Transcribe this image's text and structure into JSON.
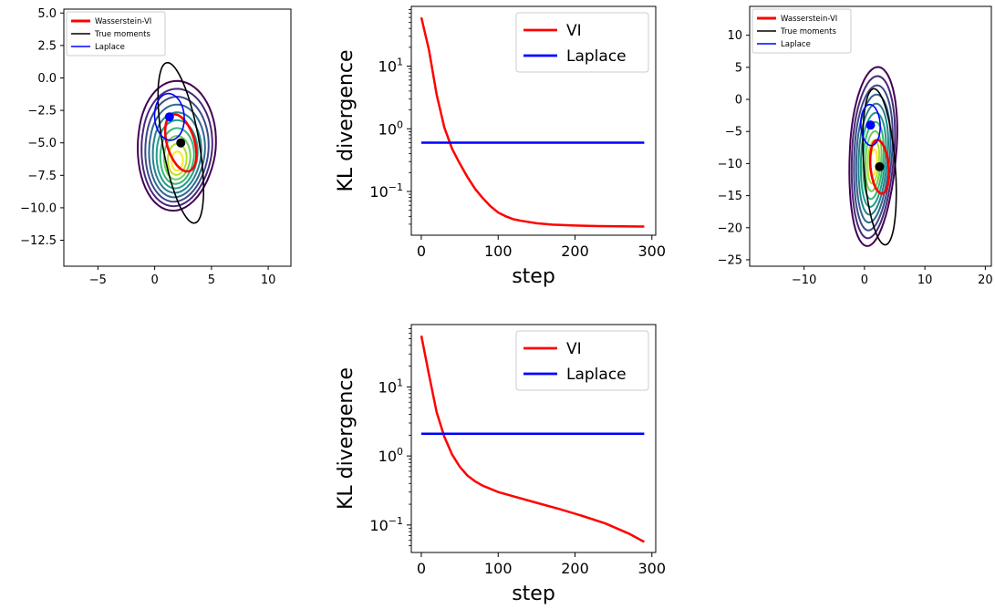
{
  "chart_data": [
    {
      "type": "contour",
      "xlim": [
        -8,
        12
      ],
      "ylim": [
        -14.5,
        5.3
      ],
      "xticks": [
        -5,
        0,
        5,
        10
      ],
      "yticks": [
        5.0,
        2.5,
        0.0,
        -2.5,
        -5.0,
        -7.5,
        -10.0,
        -12.5
      ],
      "legend": [
        "Wasserstein-VI",
        "True moments",
        "Laplace"
      ],
      "legend_placement": "top-left",
      "points": [
        {
          "x": 1.3,
          "y": -3.0,
          "color": "#0000ff"
        },
        {
          "x": 2.3,
          "y": -5.0,
          "color": "#000000"
        }
      ]
    },
    {
      "type": "line",
      "xlabel": "step",
      "ylabel": "KL divergence",
      "yscale": "log",
      "xlim": [
        -13,
        305
      ],
      "ylim": [
        0.02,
        90
      ],
      "xticks": [
        0,
        100,
        200,
        300
      ],
      "yticks": [
        0.1,
        1,
        10
      ],
      "legend_placement": "top-right",
      "series": [
        {
          "name": "VI",
          "color": "#ff0000",
          "x": [
            0,
            10,
            20,
            30,
            40,
            50,
            60,
            70,
            80,
            90,
            100,
            110,
            120,
            130,
            150,
            170,
            200,
            230,
            260,
            290
          ],
          "y": [
            60,
            18,
            3.5,
            1.05,
            0.48,
            0.28,
            0.17,
            0.11,
            0.078,
            0.058,
            0.046,
            0.04,
            0.036,
            0.034,
            0.031,
            0.0295,
            0.0285,
            0.028,
            0.0277,
            0.0275
          ]
        },
        {
          "name": "Laplace",
          "color": "#0000ff",
          "x": [
            0,
            290
          ],
          "y": [
            0.6,
            0.6
          ]
        }
      ]
    },
    {
      "type": "contour",
      "xlim": [
        -19,
        21
      ],
      "ylim": [
        -26,
        14.5
      ],
      "xticks": [
        -10,
        0,
        10,
        20
      ],
      "yticks": [
        10,
        5,
        0,
        -5,
        -10,
        -15,
        -20,
        -25
      ],
      "legend": [
        "Wasserstein-VI",
        "True moments",
        "Laplace"
      ],
      "legend_placement": "top-left",
      "points": [
        {
          "x": 1.0,
          "y": -4.0,
          "color": "#0000ff"
        },
        {
          "x": 2.5,
          "y": -10.5,
          "color": "#000000"
        }
      ]
    },
    {
      "type": "line",
      "xlabel": "step",
      "ylabel": "KL divergence",
      "yscale": "log",
      "xlim": [
        -13,
        305
      ],
      "ylim": [
        0.04,
        80
      ],
      "xticks": [
        0,
        100,
        200,
        300
      ],
      "yticks": [
        0.1,
        1,
        10
      ],
      "legend_placement": "top-right",
      "series": [
        {
          "name": "VI",
          "color": "#ff0000",
          "x": [
            0,
            10,
            20,
            30,
            40,
            50,
            60,
            70,
            80,
            100,
            120,
            150,
            180,
            210,
            240,
            270,
            290
          ],
          "y": [
            55,
            15,
            4.3,
            1.9,
            1.05,
            0.7,
            0.52,
            0.43,
            0.37,
            0.3,
            0.26,
            0.21,
            0.17,
            0.135,
            0.105,
            0.075,
            0.057
          ]
        },
        {
          "name": "Laplace",
          "color": "#0000ff",
          "x": [
            0,
            290
          ],
          "y": [
            2.1,
            2.1
          ]
        }
      ]
    }
  ]
}
